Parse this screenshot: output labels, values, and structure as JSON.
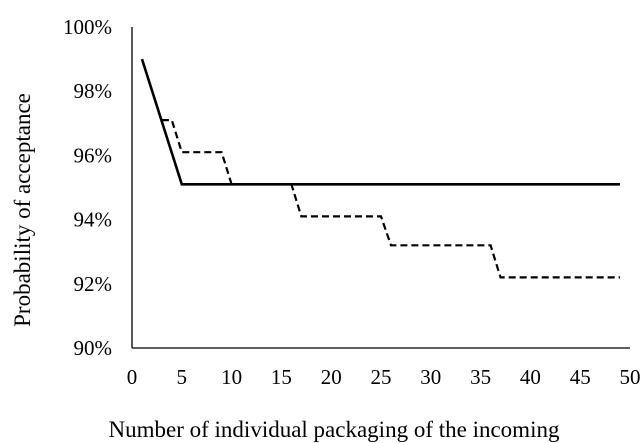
{
  "chart_data": {
    "type": "line",
    "title": "",
    "xlabel": "Number of individual packaging of the incoming",
    "ylabel": "Probability of acceptance",
    "xlim": [
      0,
      50
    ],
    "ylim": [
      0.9,
      1.0
    ],
    "x_ticks": [
      0,
      5,
      10,
      15,
      20,
      25,
      30,
      35,
      40,
      45,
      50
    ],
    "x_tick_labels": [
      "0",
      "5",
      "10",
      "15",
      "20",
      "25",
      "30",
      "35",
      "40",
      "45",
      "50"
    ],
    "y_ticks": [
      0.9,
      0.92,
      0.94,
      0.96,
      0.98,
      1.0
    ],
    "y_tick_labels": [
      "90%",
      "92%",
      "94%",
      "96%",
      "98%",
      "100%"
    ],
    "grid": false,
    "legend": "none",
    "series": [
      {
        "style": "solid",
        "color": "#000000",
        "points": [
          [
            1,
            0.99
          ],
          [
            5,
            0.951
          ],
          [
            49,
            0.951
          ]
        ]
      },
      {
        "style": "dashed",
        "color": "#000000",
        "points": [
          [
            3,
            0.971
          ],
          [
            4,
            0.971
          ],
          [
            5,
            0.961
          ],
          [
            9,
            0.961
          ],
          [
            10,
            0.951
          ],
          [
            16,
            0.951
          ],
          [
            17,
            0.941
          ],
          [
            25,
            0.941
          ],
          [
            26,
            0.932
          ],
          [
            36,
            0.932
          ],
          [
            37,
            0.922
          ],
          [
            49,
            0.922
          ]
        ]
      }
    ]
  }
}
